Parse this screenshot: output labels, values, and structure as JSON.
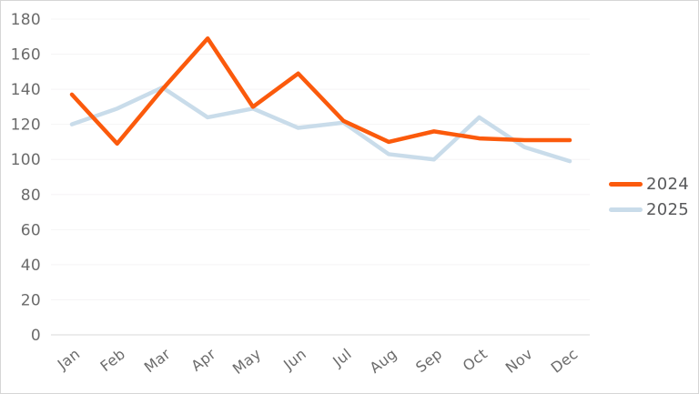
{
  "chart_data": {
    "type": "line",
    "title": "",
    "xlabel": "",
    "ylabel": "",
    "categories": [
      "Jan",
      "Feb",
      "Mar",
      "Apr",
      "May",
      "Jun",
      "Jul",
      "Aug",
      "Sep",
      "Oct",
      "Nov",
      "Dec"
    ],
    "series": [
      {
        "name": "2024",
        "color": "#fb5a0c",
        "values": [
          137,
          109,
          140,
          169,
          130,
          149,
          122,
          110,
          116,
          112,
          111,
          111
        ]
      },
      {
        "name": "2025",
        "color": "#c9dcea",
        "values": [
          120,
          129,
          141,
          124,
          129,
          118,
          121,
          103,
          100,
          124,
          107,
          99
        ]
      }
    ],
    "ylim": [
      0,
      180
    ],
    "y_ticks": [
      0,
      20,
      40,
      60,
      80,
      100,
      120,
      140,
      160,
      180
    ],
    "grid": true,
    "x_label_rotation_deg": -38,
    "legend_position": "right-middle"
  },
  "colors": {
    "background": "#ffffff",
    "border": "#d6d6d6",
    "gridline": "#f5f4f5",
    "zero_axis": "#d8d8d8",
    "tick_label": "#6b6b6b",
    "legend_text": "#58595b"
  }
}
